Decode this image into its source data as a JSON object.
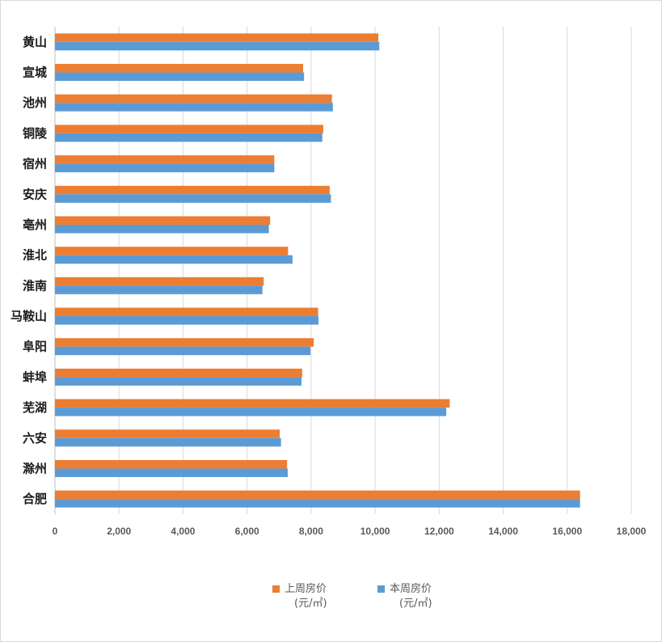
{
  "chart_data": {
    "type": "bar",
    "orientation": "horizontal",
    "categories": [
      "黄山",
      "宣城",
      "池州",
      "铜陵",
      "宿州",
      "安庆",
      "亳州",
      "淮北",
      "淮南",
      "马鞍山",
      "阜阳",
      "蚌埠",
      "芜湖",
      "六安",
      "滁州",
      "合肥"
    ],
    "series": [
      {
        "name": "上周房价(元/㎡)",
        "name_line1": "上周房价",
        "name_line2": "(元/㎡)",
        "color": "#ED7D31",
        "values": [
          10100,
          7750,
          8650,
          8380,
          6850,
          8580,
          6720,
          7280,
          6520,
          8220,
          8080,
          7720,
          12330,
          7020,
          7250,
          16400
        ]
      },
      {
        "name": "本周房价(元/㎡)",
        "name_line1": "本周房价",
        "name_line2": "(元/㎡)",
        "color": "#5B9BD5",
        "values": [
          10130,
          7780,
          8680,
          8350,
          6850,
          8620,
          6680,
          7420,
          6480,
          8230,
          7980,
          7700,
          12220,
          7060,
          7270,
          16400
        ]
      }
    ],
    "xlim": [
      0,
      18000
    ],
    "xticks": [
      0,
      2000,
      4000,
      6000,
      8000,
      10000,
      12000,
      14000,
      16000,
      18000
    ],
    "xtick_labels": [
      "0",
      "2,000",
      "4,000",
      "6,000",
      "8,000",
      "10,000",
      "12,000",
      "14,000",
      "16,000",
      "18,000"
    ],
    "grid": true,
    "legend_position": "bottom",
    "title": "",
    "xlabel": "",
    "ylabel": ""
  }
}
